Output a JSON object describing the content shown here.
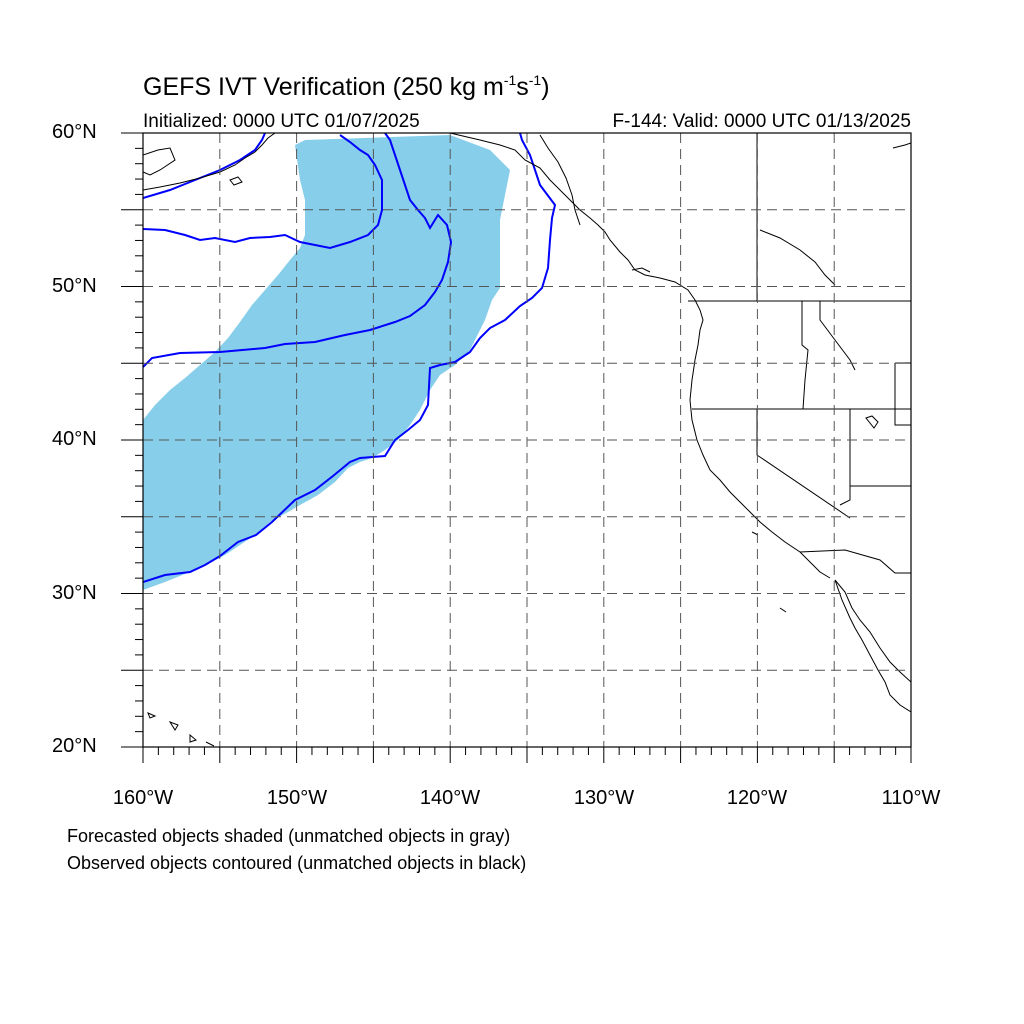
{
  "title": {
    "prefix": "GEFS IVT Verification (250 kg m",
    "sup1": "-1",
    "mid": "s",
    "sup2": "-1",
    "suffix": ")"
  },
  "subtitle": {
    "left": "Initialized: 0000 UTC 01/07/2025",
    "right": "F-144: Valid: 0000 UTC 01/13/2025"
  },
  "axes": {
    "lon_range": [
      -160,
      -110
    ],
    "lat_range": [
      20,
      60
    ],
    "lat_labels": [
      "60°N",
      "50°N",
      "40°N",
      "30°N",
      "20°N"
    ],
    "lon_labels": [
      "160°W",
      "150°W",
      "140°W",
      "130°W",
      "120°W",
      "110°W"
    ],
    "gridlines": "dashed, every 5°"
  },
  "colors": {
    "forecast_fill": "#87ceeb",
    "observed_contour": "#0000ff",
    "coastline": "#000000",
    "grid": "#555555"
  },
  "notes": {
    "line1": "Forecasted objects shaded (unmatched objects in gray)",
    "line2": "Observed objects contoured (unmatched objects in black)"
  }
}
